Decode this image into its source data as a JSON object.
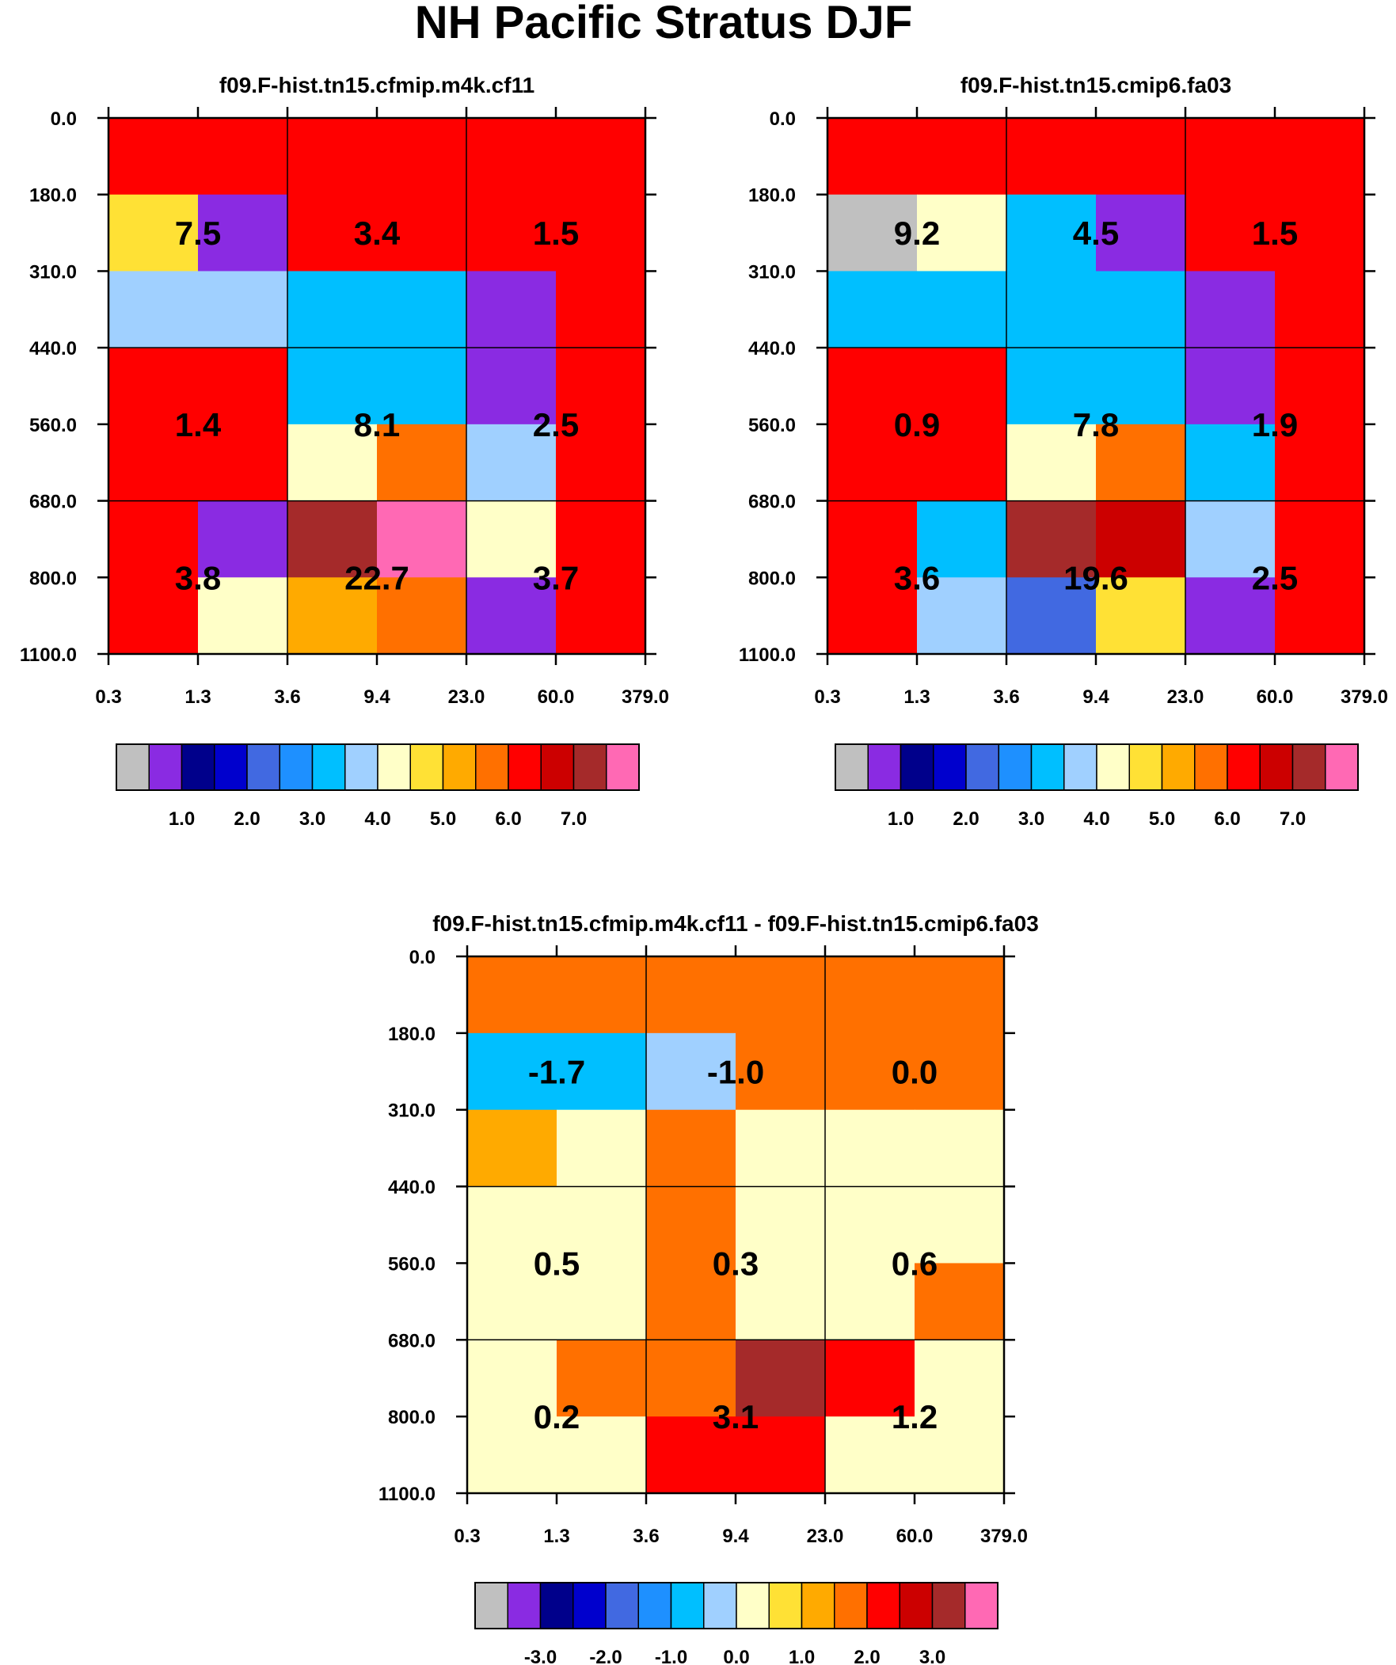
{
  "title": "NH Pacific Stratus DJF",
  "chart_data": [
    {
      "type": "heatmap",
      "title": "f09.F-hist.tn15.cfmip.m4k.cf11",
      "x_ticks": [
        "0.3",
        "1.3",
        "3.6",
        "9.4",
        "23.0",
        "60.0",
        "379.0"
      ],
      "y_ticks": [
        "0.0",
        "180.0",
        "310.0",
        "440.0",
        "560.0",
        "680.0",
        "800.0",
        "1100.0"
      ],
      "grid_values": [
        [
          12,
          12,
          12,
          12,
          12,
          12
        ],
        [
          9,
          1,
          12,
          12,
          12,
          12
        ],
        [
          7,
          7,
          6,
          6,
          1,
          12
        ],
        [
          12,
          12,
          6,
          6,
          1,
          12
        ],
        [
          12,
          12,
          8,
          11,
          7,
          12
        ],
        [
          12,
          1,
          14,
          15,
          8,
          12
        ],
        [
          12,
          8,
          10,
          11,
          1,
          12
        ]
      ],
      "box_values": [
        "7.5",
        "3.4",
        "1.5",
        "1.4",
        "8.1",
        "2.5",
        "3.8",
        "22.7",
        "3.7"
      ],
      "colorbar_labels": [
        "1.0",
        "2.0",
        "3.0",
        "4.0",
        "5.0",
        "6.0",
        "7.0"
      ]
    },
    {
      "type": "heatmap",
      "title": "f09.F-hist.tn15.cmip6.fa03",
      "x_ticks": [
        "0.3",
        "1.3",
        "3.6",
        "9.4",
        "23.0",
        "60.0",
        "379.0"
      ],
      "y_ticks": [
        "0.0",
        "180.0",
        "310.0",
        "440.0",
        "560.0",
        "680.0",
        "800.0",
        "1100.0"
      ],
      "grid_values": [
        [
          12,
          12,
          12,
          12,
          12,
          12
        ],
        [
          0,
          8,
          6,
          1,
          12,
          12
        ],
        [
          6,
          6,
          6,
          6,
          1,
          12
        ],
        [
          12,
          12,
          6,
          6,
          1,
          12
        ],
        [
          12,
          12,
          8,
          11,
          6,
          12
        ],
        [
          12,
          6,
          14,
          13,
          7,
          12
        ],
        [
          12,
          7,
          4,
          9,
          1,
          12
        ]
      ],
      "box_values": [
        "9.2",
        "4.5",
        "1.5",
        "0.9",
        "7.8",
        "1.9",
        "3.6",
        "19.6",
        "2.5"
      ],
      "colorbar_labels": [
        "1.0",
        "2.0",
        "3.0",
        "4.0",
        "5.0",
        "6.0",
        "7.0"
      ]
    },
    {
      "type": "heatmap",
      "title": "f09.F-hist.tn15.cfmip.m4k.cf11 - f09.F-hist.tn15.cmip6.fa03",
      "x_ticks": [
        "0.3",
        "1.3",
        "3.6",
        "9.4",
        "23.0",
        "60.0",
        "379.0"
      ],
      "y_ticks": [
        "0.0",
        "180.0",
        "310.0",
        "440.0",
        "560.0",
        "680.0",
        "800.0",
        "1100.0"
      ],
      "grid_values": [
        [
          3,
          3,
          3,
          3,
          3,
          3
        ],
        [
          -2,
          -2,
          -1,
          3,
          3,
          3
        ],
        [
          2,
          0,
          3,
          0,
          0,
          0
        ],
        [
          0,
          0,
          3,
          0,
          0,
          0
        ],
        [
          0,
          0,
          3,
          0,
          0,
          3
        ],
        [
          0,
          3,
          3,
          6,
          4,
          0
        ],
        [
          0,
          0,
          4,
          4,
          0,
          0
        ]
      ],
      "box_values": [
        "-1.7",
        "-1.0",
        "0.0",
        "0.5",
        "0.3",
        "0.6",
        "0.2",
        "3.1",
        "1.2"
      ],
      "colorbar_labels": [
        "-3.0",
        "-2.0",
        "-1.0",
        "0.0",
        "1.0",
        "2.0",
        "3.0"
      ]
    }
  ],
  "colors": {
    "palette": [
      "#c0c0c0",
      "#8a2be2",
      "#00008b",
      "#0000cd",
      "#4169e1",
      "#1e90ff",
      "#00bfff",
      "#a0d0ff",
      "#ffffc8",
      "#ffe135",
      "#ffaa00",
      "#ff7000",
      "#ff0000",
      "#cc0000",
      "#a52a2a",
      "#ff69b4"
    ],
    "missing": "#c0c0c0"
  }
}
